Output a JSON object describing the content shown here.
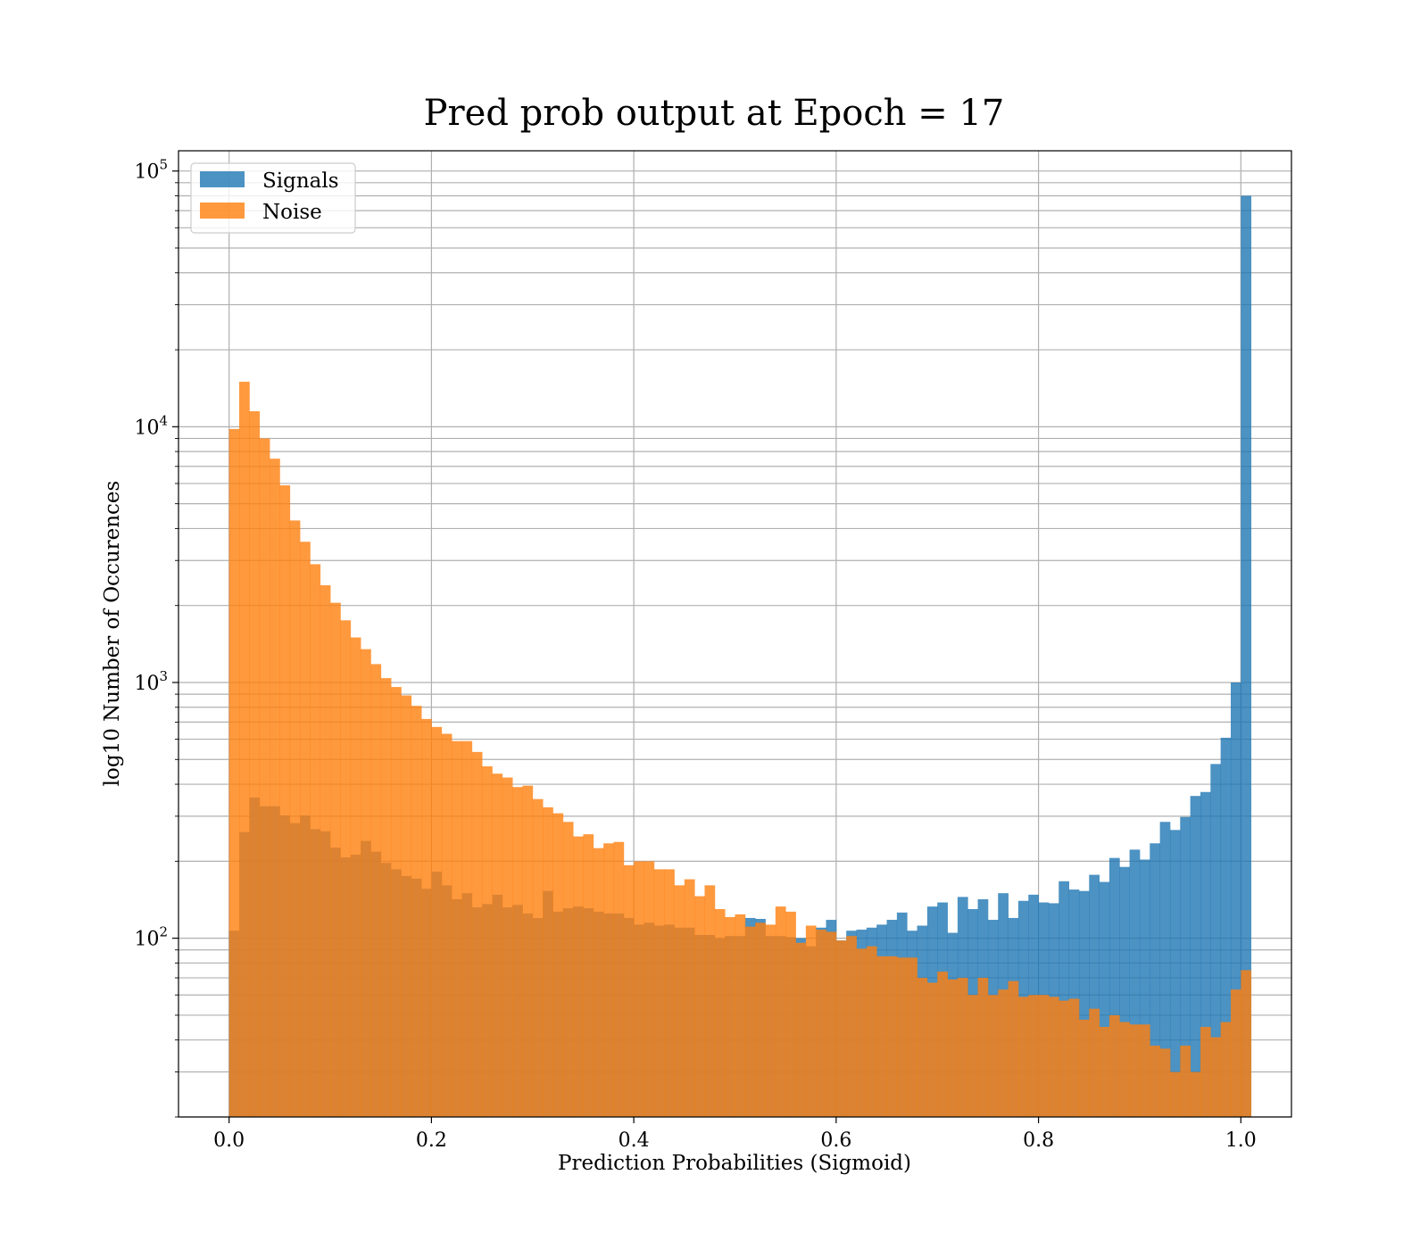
{
  "chart_data": {
    "type": "histogram",
    "title": "Pred prob output at Epoch = 17",
    "xlabel": "Prediction Probabilities (Sigmoid)",
    "ylabel": "log10 Number of Occurences",
    "xlim": [
      -0.05,
      1.05
    ],
    "ylim": [
      20,
      120000
    ],
    "yscale": "log",
    "grid": true,
    "legend_position": "upper-left",
    "x_ticks": [
      "0.0",
      "0.2",
      "0.4",
      "0.6",
      "0.8",
      "1.0"
    ],
    "y_ticks": [
      {
        "base": "10",
        "exp": "2",
        "value": 100
      },
      {
        "base": "10",
        "exp": "3",
        "value": 1000
      },
      {
        "base": "10",
        "exp": "4",
        "value": 10000
      },
      {
        "base": "10",
        "exp": "5",
        "value": 100000
      }
    ],
    "bin_start": 0.0,
    "bin_width": 0.01,
    "series": [
      {
        "name": "Signals",
        "color": "#1f77b4",
        "opacity": 0.8,
        "values": [
          107,
          260,
          355,
          328,
          328,
          302,
          282,
          302,
          267,
          262,
          226,
          207,
          212,
          240,
          218,
          197,
          186,
          175,
          171,
          156,
          182,
          161,
          142,
          150,
          132,
          136,
          148,
          132,
          135,
          125,
          120,
          153,
          127,
          131,
          133,
          131,
          127,
          125,
          125,
          120,
          113,
          115,
          112,
          113,
          110,
          110,
          103,
          103,
          100,
          102,
          102,
          120,
          119,
          102,
          102,
          101,
          100,
          93,
          110,
          118,
          98,
          107,
          108,
          110,
          113,
          118,
          126,
          107,
          112,
          133,
          138,
          105,
          145,
          130,
          142,
          118,
          150,
          120,
          140,
          148,
          138,
          137,
          167,
          155,
          153,
          177,
          166,
          206,
          190,
          222,
          203,
          235,
          285,
          265,
          298,
          360,
          373,
          480,
          608,
          1000,
          80000
        ]
      },
      {
        "name": "Noise",
        "color": "#ff7f0e",
        "opacity": 0.8,
        "values": [
          9800,
          15000,
          11500,
          9000,
          7500,
          5900,
          4300,
          3550,
          2900,
          2400,
          2050,
          1750,
          1500,
          1350,
          1180,
          1040,
          960,
          890,
          810,
          720,
          670,
          630,
          590,
          590,
          535,
          470,
          440,
          425,
          390,
          395,
          350,
          325,
          308,
          285,
          250,
          255,
          225,
          235,
          238,
          193,
          200,
          200,
          186,
          186,
          161,
          170,
          146,
          161,
          130,
          121,
          124,
          111,
          115,
          113,
          133,
          127,
          96,
          112,
          108,
          106,
          98,
          102,
          91,
          93,
          85,
          85,
          84,
          84,
          70,
          67,
          74,
          69,
          70,
          60,
          70,
          60,
          63,
          68,
          59,
          60,
          60,
          59,
          57,
          58,
          48,
          53,
          45,
          50,
          47,
          46,
          46,
          38,
          37,
          30,
          38,
          30,
          45,
          41,
          47,
          63,
          75
        ]
      }
    ]
  }
}
